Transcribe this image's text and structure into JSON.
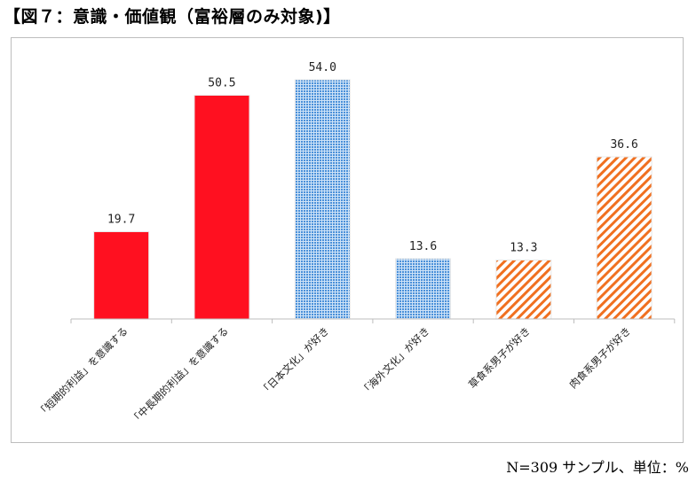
{
  "title": "【図７：意識・価値観（富裕層のみ対象)】",
  "note": "N=309 サンプル、単位：%",
  "chart_data": {
    "type": "bar",
    "title": "【図７：意識・価値観（富裕層のみ対象)】",
    "categories": [
      "「短期的利益」を意識する",
      "「中長期的利益」を意識する",
      "「日本文化」が好き",
      "「海外文化」が好き",
      "草食系男子が好き",
      "肉食系男子が好き"
    ],
    "values": [
      19.7,
      50.5,
      54.0,
      13.6,
      13.3,
      36.6
    ],
    "value_labels": [
      "19.7",
      "50.5",
      "54.0",
      "13.6",
      "13.3",
      "36.6"
    ],
    "styles": [
      "solid-red",
      "solid-red",
      "dotted-blue",
      "dotted-blue",
      "hatched-orange",
      "hatched-orange"
    ],
    "colors": {
      "red": "#ff1020",
      "blue": "#4a90d9",
      "orange": "#f07020"
    },
    "xlabel": "",
    "ylabel": "",
    "ylim": [
      0,
      60
    ],
    "grid": false,
    "legend": "none"
  }
}
